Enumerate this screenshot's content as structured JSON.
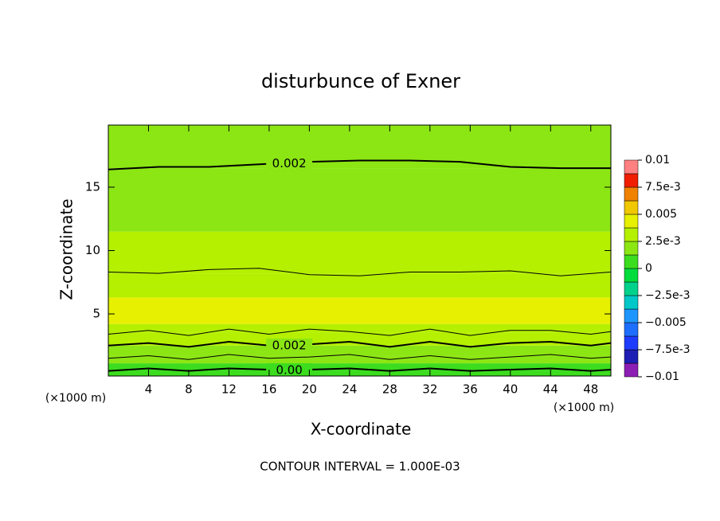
{
  "chart_data": {
    "type": "contour",
    "title": "disturbunce of Exner",
    "x_label": "X-coordinate",
    "y_label": "Z-coordinate",
    "x_unit_label": "(×1000 m)",
    "y_unit_label": "(×1000 m)",
    "footer": "CONTOUR INTERVAL = 1.000E-03",
    "xlim": [
      0,
      50
    ],
    "xticks": [
      4,
      8,
      12,
      16,
      20,
      24,
      28,
      32,
      36,
      40,
      44,
      48
    ],
    "ylim": [
      0.1,
      19.9
    ],
    "yticks": [
      5,
      10,
      15
    ],
    "field": {
      "z_bins": [
        0,
        0.6,
        1.1,
        1.7,
        2.5,
        3.5,
        4.2,
        6.3,
        7.2,
        8.2,
        11.5,
        16.5,
        19.9
      ],
      "values": [
        0.0005,
        0.0008,
        0.0013,
        0.0018,
        0.0028,
        0.0034,
        0.0039,
        0.0034,
        0.0029,
        0.0026,
        0.0023,
        0.0019
      ]
    },
    "contours": [
      {
        "value": 0.002,
        "label": "0.002",
        "x": [
          0,
          5,
          10,
          15,
          20,
          25,
          30,
          35,
          40,
          45,
          50
        ],
        "y": [
          16.4,
          16.6,
          16.6,
          16.8,
          17.0,
          17.1,
          17.1,
          17.0,
          16.6,
          16.5,
          16.5
        ]
      },
      {
        "value": 0.003,
        "x": [
          0,
          5,
          10,
          15,
          20,
          25,
          30,
          35,
          40,
          45,
          50
        ],
        "y": [
          8.3,
          8.2,
          8.5,
          8.6,
          8.1,
          8.0,
          8.3,
          8.3,
          8.4,
          8.0,
          8.3
        ]
      },
      {
        "value": 0.003,
        "x": [
          0,
          4,
          8,
          12,
          16,
          20,
          24,
          28,
          32,
          36,
          40,
          44,
          48,
          50
        ],
        "y": [
          3.4,
          3.7,
          3.3,
          3.8,
          3.4,
          3.8,
          3.6,
          3.3,
          3.8,
          3.3,
          3.7,
          3.7,
          3.4,
          3.6
        ]
      },
      {
        "value": 0.002,
        "label": "0.002",
        "x": [
          0,
          4,
          8,
          12,
          16,
          20,
          24,
          28,
          32,
          36,
          40,
          44,
          48,
          50
        ],
        "y": [
          2.5,
          2.7,
          2.4,
          2.8,
          2.5,
          2.6,
          2.8,
          2.4,
          2.8,
          2.4,
          2.7,
          2.8,
          2.5,
          2.7
        ]
      },
      {
        "value": 0.001,
        "x": [
          0,
          4,
          8,
          12,
          16,
          20,
          24,
          28,
          32,
          36,
          40,
          44,
          48,
          50
        ],
        "y": [
          1.5,
          1.7,
          1.4,
          1.8,
          1.5,
          1.6,
          1.8,
          1.4,
          1.7,
          1.4,
          1.6,
          1.8,
          1.5,
          1.6
        ]
      },
      {
        "value": 0,
        "label": "0.00",
        "x": [
          0,
          4,
          8,
          12,
          16,
          20,
          24,
          28,
          32,
          36,
          40,
          44,
          48,
          50
        ],
        "y": [
          0.5,
          0.7,
          0.5,
          0.7,
          0.6,
          0.6,
          0.7,
          0.5,
          0.7,
          0.5,
          0.6,
          0.7,
          0.5,
          0.6
        ]
      }
    ],
    "colorbar": {
      "levels": [
        -0.01,
        -0.00875,
        -0.0075,
        -0.00625,
        -0.005,
        -0.00375,
        -0.0025,
        -0.00125,
        0,
        0.00125,
        0.0025,
        0.00375,
        0.005,
        0.00625,
        0.0075,
        0.00875,
        0.01
      ],
      "colors": [
        "#8c1eb4",
        "#1e1eb4",
        "#1e3cff",
        "#1e6eff",
        "#1e96ff",
        "#00c8c8",
        "#00d28c",
        "#00dc3c",
        "#3cdc1e",
        "#8ce614",
        "#b4f000",
        "#e6f000",
        "#f0c800",
        "#f08200",
        "#f01e00",
        "#ff8080"
      ],
      "ticks": [
        0.01,
        {
          "value": 0.0075,
          "label": "7.5e-3"
        },
        0.005,
        {
          "value": 0.0025,
          "label": "2.5e-3"
        },
        0,
        {
          "value": -0.0025,
          "label": "−2.5e-3"
        },
        {
          "value": -0.005,
          "label": "−0.005"
        },
        {
          "value": -0.0075,
          "label": "−7.5e-3"
        },
        {
          "value": -0.01,
          "label": "−0.01"
        }
      ]
    }
  }
}
